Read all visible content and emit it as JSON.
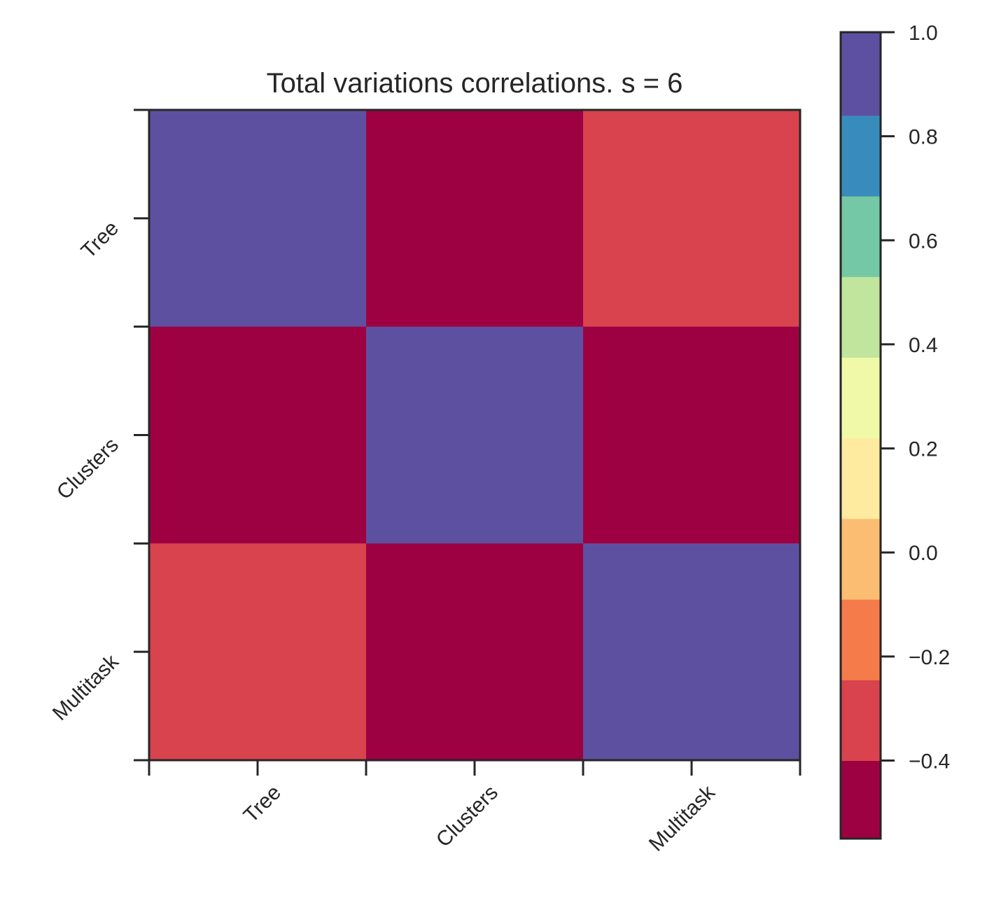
{
  "chart_data": {
    "type": "heatmap",
    "title": "Total variations correlations. s = 6",
    "x_categories": [
      "Tree",
      "Clusters",
      "Multitask"
    ],
    "y_categories": [
      "Tree",
      "Clusters",
      "Multitask"
    ],
    "values": [
      [
        1.0,
        -0.5,
        -0.3
      ],
      [
        -0.5,
        1.0,
        -0.5
      ],
      [
        -0.3,
        -0.5,
        1.0
      ]
    ],
    "colorbar": {
      "range": [
        -0.55,
        1.0
      ],
      "ticks": [
        1.0,
        0.8,
        0.6,
        0.4,
        0.2,
        0.0,
        -0.2,
        -0.4
      ],
      "tick_labels": [
        "1.0",
        "0.8",
        "0.6",
        "0.4",
        "0.2",
        "0.0",
        "−0.2",
        "−0.4"
      ],
      "levels": [
        {
          "from": -0.55,
          "to": -0.4,
          "color": "#9e0142"
        },
        {
          "from": -0.4,
          "to": -0.245,
          "color": "#d8434e"
        },
        {
          "from": -0.245,
          "to": -0.09,
          "color": "#f57b4a"
        },
        {
          "from": -0.09,
          "to": 0.065,
          "color": "#fbbd72"
        },
        {
          "from": 0.065,
          "to": 0.22,
          "color": "#feeba0"
        },
        {
          "from": 0.22,
          "to": 0.375,
          "color": "#f0f9a8"
        },
        {
          "from": 0.375,
          "to": 0.53,
          "color": "#c1e59c"
        },
        {
          "from": 0.53,
          "to": 0.685,
          "color": "#75c8a5"
        },
        {
          "from": 0.685,
          "to": 0.84,
          "color": "#388cbc"
        },
        {
          "from": 0.84,
          "to": 1.0,
          "color": "#5e50a1"
        }
      ]
    },
    "grid": false,
    "legend": "colorbar-right"
  }
}
